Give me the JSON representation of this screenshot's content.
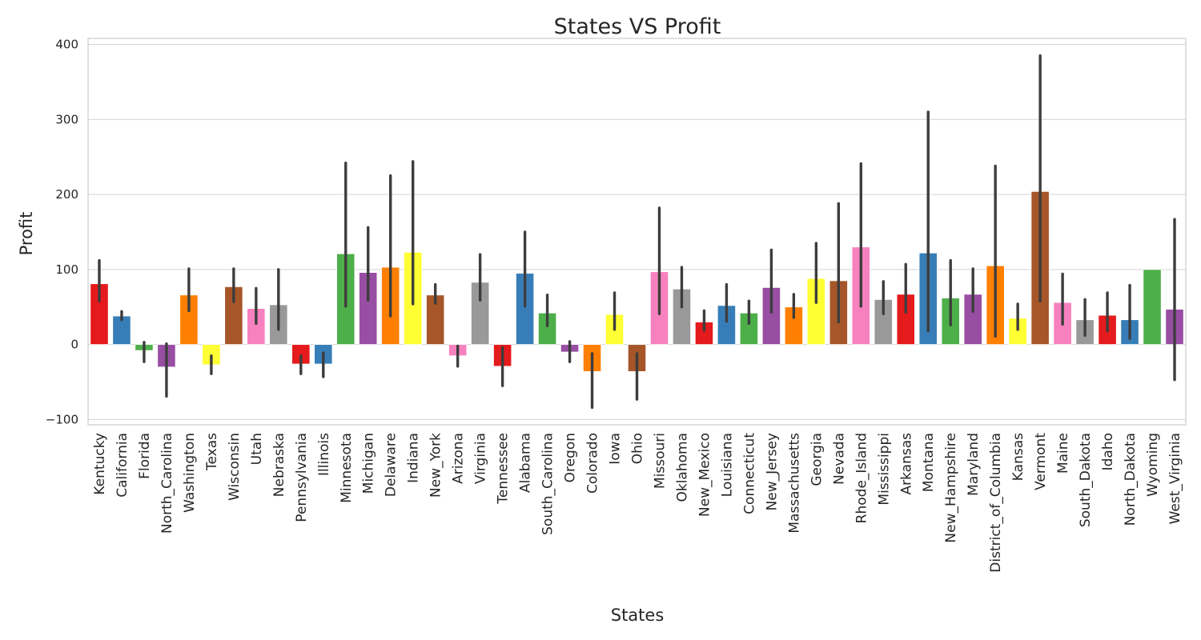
{
  "chart_data": {
    "type": "bar",
    "title": "States VS Profit",
    "xlabel": "States",
    "ylabel": "Profit",
    "ylim": [
      -107,
      408
    ],
    "yticks": [
      -100,
      0,
      100,
      200,
      300,
      400
    ],
    "ytick_labels": [
      "−100",
      "0",
      "100",
      "200",
      "300",
      "400"
    ],
    "grid": true,
    "palette": [
      "#e41a1c",
      "#377eb8",
      "#4daf4a",
      "#984ea3",
      "#ff7f00",
      "#ffff33",
      "#a65628",
      "#f781bf",
      "#999999"
    ],
    "categories": [
      "Kentucky",
      "California",
      "Florida",
      "North_Carolina",
      "Washington",
      "Texas",
      "Wisconsin",
      "Utah",
      "Nebraska",
      "Pennsylvania",
      "Illinois",
      "Minnesota",
      "Michigan",
      "Delaware",
      "Indiana",
      "New_York",
      "Arizona",
      "Virginia",
      "Tennessee",
      "Alabama",
      "South_Carolina",
      "Oregon",
      "Colorado",
      "Iowa",
      "Ohio",
      "Missouri",
      "Oklahoma",
      "New_Mexico",
      "Louisiana",
      "Connecticut",
      "New_Jersey",
      "Massachusetts",
      "Georgia",
      "Nevada",
      "Rhode_Island",
      "Mississippi",
      "Arkansas",
      "Montana",
      "New_Hampshire",
      "Maryland",
      "District_of_Columbia",
      "Kansas",
      "Vermont",
      "Maine",
      "South_Dakota",
      "Idaho",
      "North_Dakota",
      "Wyoming",
      "West_Virginia"
    ],
    "values": [
      81,
      38,
      -8,
      -30,
      66,
      -27,
      77,
      48,
      53,
      -26,
      -26,
      121,
      96,
      103,
      123,
      66,
      -15,
      83,
      -29,
      95,
      42,
      -10,
      -36,
      40,
      -36,
      97,
      74,
      30,
      52,
      42,
      76,
      50,
      88,
      85,
      130,
      60,
      67,
      122,
      62,
      67,
      105,
      35,
      204,
      56,
      33,
      39,
      33,
      100,
      47
    ],
    "error_low": [
      58,
      33,
      -23,
      -69,
      45,
      -39,
      57,
      28,
      20,
      -39,
      -43,
      51,
      59,
      38,
      54,
      55,
      -29,
      59,
      -55,
      51,
      25,
      -23,
      -84,
      20,
      -73,
      41,
      50,
      19,
      31,
      28,
      43,
      36,
      56,
      30,
      51,
      41,
      43,
      18,
      26,
      44,
      11,
      20,
      58,
      27,
      12,
      18,
      8,
      100,
      -47
    ],
    "error_high": [
      112,
      44,
      3,
      1,
      101,
      -15,
      101,
      75,
      100,
      -15,
      -11,
      242,
      156,
      225,
      244,
      80,
      -2,
      120,
      -4,
      150,
      66,
      4,
      -12,
      69,
      -12,
      182,
      103,
      45,
      80,
      58,
      126,
      67,
      135,
      188,
      241,
      84,
      107,
      310,
      112,
      101,
      238,
      54,
      385,
      94,
      60,
      69,
      79,
      100,
      167
    ]
  }
}
